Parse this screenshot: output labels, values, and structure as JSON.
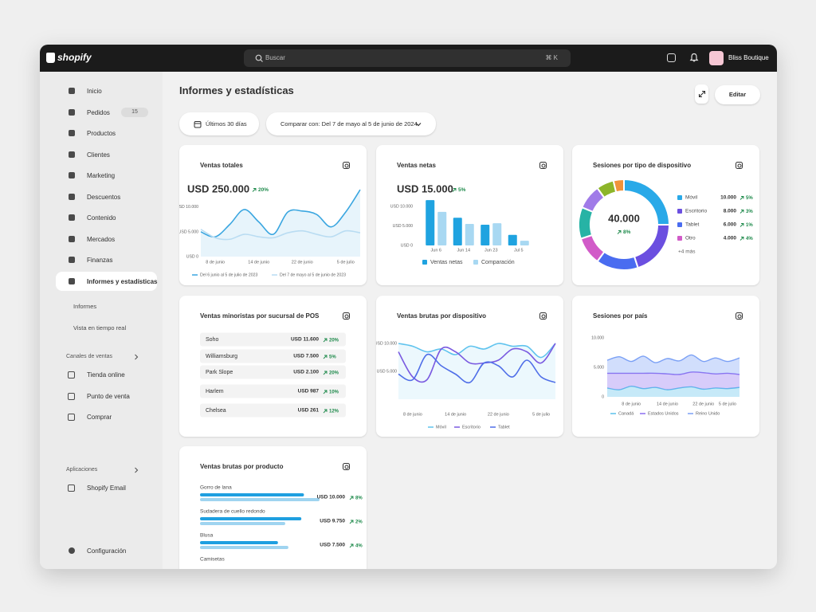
{
  "topbar": {
    "brand": "shopify",
    "search": "Buscar",
    "shortcut": "⌘ K",
    "store": "Bliss Boutique"
  },
  "sidebar": {
    "items": [
      {
        "label": "Inicio"
      },
      {
        "label": "Pedidos",
        "badge": 15
      },
      {
        "label": "Productos"
      },
      {
        "label": "Clientes"
      },
      {
        "label": "Marketing"
      },
      {
        "label": "Descuentos"
      },
      {
        "label": "Contenido"
      },
      {
        "label": "Mercados"
      },
      {
        "label": "Finanzas"
      },
      {
        "label": "Informes y estadísticas",
        "active": true
      }
    ],
    "subitems": [
      "Informes",
      "Vista en tiempo real"
    ],
    "sections": [
      {
        "title": "Canales de ventas",
        "items": [
          "Tienda online",
          "Punto de venta",
          "Comprar"
        ]
      },
      {
        "title": "Aplicaciones",
        "items": [
          "Shopify Email"
        ]
      }
    ],
    "footer": "Configuración"
  },
  "header": {
    "title": "Informes y estadísticas",
    "edit": "Editar",
    "date_range": "Últimos 30 días",
    "compare": "Comparar con: Del 7 de mayo al 5 de junio de 2024"
  },
  "chart_data": [
    {
      "type": "line",
      "title": "Ventas totales",
      "headline": "USD 250.000",
      "change": "20%",
      "categories": [
        null,
        "8 de junio",
        null,
        null,
        "14 de junio",
        null,
        null,
        "22 de junio",
        null,
        null,
        "5 de julio",
        null
      ],
      "series": [
        {
          "name": "Del 6 junio al 5 de julio de 2023",
          "color": "#3aa6e0",
          "area": true,
          "values": [
            5000,
            4000,
            6500,
            9500,
            7000,
            4500,
            9000,
            9200,
            8500,
            6000,
            9000,
            13500
          ]
        },
        {
          "name": "Del 7 de mayo al 5 de junio de 2023",
          "color": "#b9dcf2",
          "area": false,
          "values": [
            5500,
            3800,
            3500,
            4500,
            4000,
            3800,
            4800,
            5200,
            4500,
            4000,
            5200,
            4800
          ]
        }
      ],
      "ylim": [
        0,
        14000
      ],
      "yticks": [
        {
          "value": 0,
          "label": "USD 0"
        },
        {
          "value": 5000,
          "label": "USD 5.000"
        },
        {
          "value": 10000,
          "label": "USD 10.000"
        }
      ],
      "grid": false
    },
    {
      "type": "bar",
      "title": "Ventas netas",
      "headline": "USD 15.000",
      "change": "5%",
      "categories": [
        "Jun 6",
        "Jun 14",
        "Jun 23",
        "Jul 5"
      ],
      "series": [
        {
          "name": "Ventas netas",
          "color": "#1fa3e0",
          "values": [
            11600,
            7100,
            5300,
            2700
          ]
        },
        {
          "name": "Comparación",
          "color": "#a8d8f2",
          "values": [
            8600,
            5500,
            5700,
            1200
          ]
        }
      ],
      "ylim": [
        0,
        14000
      ],
      "yticks": [
        {
          "value": 0,
          "label": "USD 0"
        },
        {
          "value": 5000,
          "label": "USD 5.000"
        },
        {
          "value": 10000,
          "label": "USD 10.000"
        }
      ],
      "grid": false
    },
    {
      "type": "pie",
      "donut": true,
      "title": "Sesiones por tipo de dispositivo",
      "total": 40000,
      "total_label": "40.000",
      "change": "8%",
      "categories": [
        "Móvil",
        "Escritorio",
        "Tablet",
        "Otro",
        null,
        null,
        null,
        null
      ],
      "values": [
        10000,
        8000,
        6000,
        4000,
        4500,
        3500,
        2500,
        1500
      ],
      "value_labels": [
        "10.000",
        "8.000",
        "6.000",
        "4.000",
        null,
        null,
        null,
        null
      ],
      "changes": [
        "5%",
        "3%",
        "1%",
        "4%",
        null,
        null,
        null,
        null
      ],
      "colors": [
        "#29a9e8",
        "#6b4fe0",
        "#4a6cf0",
        "#d15bc8",
        "#27b3a5",
        "#a07be8",
        "#8db52a",
        "#f0923a"
      ],
      "more": "+4 más"
    },
    {
      "type": "line",
      "title": "Ventas brutas por dispositivo",
      "categories": [
        null,
        "8 de junio",
        null,
        null,
        "14 de junio",
        null,
        null,
        "22 de junio",
        null,
        null,
        "5 de julio",
        null
      ],
      "series": [
        {
          "name": "Móvil",
          "color": "#5fc3ee",
          "area": true,
          "values": [
            10000,
            9500,
            8500,
            9000,
            8000,
            9500,
            9000,
            10000,
            9500,
            9500,
            7500,
            10000
          ]
        },
        {
          "name": "Escritorio",
          "color": "#7a5ae0",
          "area": false,
          "values": [
            8500,
            4000,
            3500,
            9000,
            8500,
            6500,
            6500,
            7000,
            9000,
            8500,
            6500,
            10000
          ]
        },
        {
          "name": "Tablet",
          "color": "#4f6ee8",
          "area": false,
          "values": [
            4500,
            3500,
            8000,
            6000,
            4500,
            3000,
            6500,
            6000,
            4000,
            7000,
            4000,
            3000
          ]
        }
      ],
      "ylim": [
        0,
        11000
      ],
      "yticks": [
        {
          "value": 5000,
          "label": "USD 5.000"
        },
        {
          "value": 10000,
          "label": "USD 10.000"
        }
      ],
      "grid": false
    },
    {
      "type": "area",
      "stacked": true,
      "title": "Sesiones por país",
      "categories": [
        null,
        null,
        "8 de junio",
        null,
        null,
        "14 de junio",
        null,
        null,
        "22 de junio",
        null,
        "5 de julio",
        null
      ],
      "series": [
        {
          "name": "Canadá",
          "color": "#5bc0eb",
          "values": [
            1500,
            1200,
            1800,
            1400,
            1600,
            1200,
            1500,
            1700,
            1300,
            1500,
            1400,
            1600
          ]
        },
        {
          "name": "Estados Unidos",
          "color": "#8b6df0",
          "values": [
            2500,
            2800,
            2200,
            2600,
            2400,
            2700,
            2300,
            2500,
            2800,
            2400,
            2600,
            2200
          ]
        },
        {
          "name": "Reino Unido",
          "color": "#7aa0f5",
          "values": [
            2200,
            2800,
            2000,
            2900,
            1800,
            2600,
            2300,
            2900,
            1900,
            2700,
            2000,
            2800
          ]
        }
      ],
      "ylim": [
        0,
        11000
      ],
      "yticks": [
        0,
        {
          "value": 5000,
          "label": "5.000"
        },
        {
          "value": 10000,
          "label": "10.000"
        }
      ],
      "grid": false
    },
    {
      "type": "hbar",
      "title": "Ventas brutas por producto",
      "categories": [
        "Gorro de lana",
        "Sudadera de cuello redondo",
        "Blusa",
        "Camisetas"
      ],
      "series": [
        {
          "color": "#1f9fe0",
          "values": [
            10000,
            9750,
            7500,
            null
          ]
        },
        {
          "color": "#9fd4f0",
          "values": [
            11500,
            8200,
            8500,
            null
          ]
        }
      ],
      "value_labels": [
        "USD 10.000",
        "USD 9.750",
        "USD 7.500",
        null
      ],
      "changes": [
        "8%",
        "2%",
        "4%",
        null
      ]
    }
  ],
  "pos_table": {
    "title": "Ventas minoristas por sucursal de POS",
    "rows": [
      [
        "Soho",
        "USD 11.600",
        "20%"
      ],
      [
        "Williamsburg",
        "USD 7.500",
        "5%"
      ],
      [
        "Park Slope",
        "USD 2.100",
        "20%"
      ],
      [
        "Harlem",
        "USD 987",
        "10%"
      ],
      [
        "Chelsea",
        "USD 261",
        "12%"
      ]
    ]
  }
}
